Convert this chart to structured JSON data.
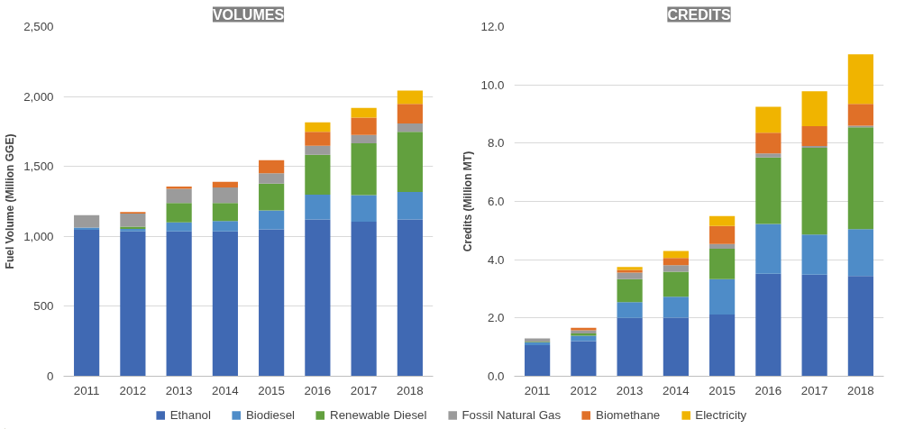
{
  "chart_data": [
    {
      "type": "bar",
      "title": "VOLUMES",
      "ylabel": "Fuel Volume (Million GGE)",
      "stacked": true,
      "legend": "bottom",
      "grid": "y",
      "categories": [
        "2011",
        "2012",
        "2013",
        "2014",
        "2015",
        "2016",
        "2017",
        "2018"
      ],
      "ylim": [
        0,
        2500
      ],
      "yticks": [
        0,
        500,
        {
          "value": 1000,
          "label": "1,000"
        },
        {
          "value": 1500,
          "label": "1,500"
        },
        {
          "value": 2000,
          "label": "2,000"
        },
        {
          "value": 2500,
          "label": "2,500"
        }
      ],
      "series": [
        {
          "name": "Ethanol",
          "color": "#4069b3",
          "values": [
            1047,
            1036,
            1036,
            1036,
            1050,
            1121,
            1105,
            1121
          ]
        },
        {
          "name": "Biodiesel",
          "color": "#4e8cc8",
          "values": [
            16,
            18,
            64,
            74,
            136,
            178,
            190,
            197
          ]
        },
        {
          "name": "Renewable Diesel",
          "color": "#62a03e",
          "values": [
            0,
            16,
            139,
            129,
            192,
            285,
            370,
            430
          ]
        },
        {
          "name": "Fossil Natural Gas",
          "color": "#9b9b9b",
          "values": [
            88,
            93,
            102,
            111,
            74,
            64,
            60,
            60
          ]
        },
        {
          "name": "Biomethane",
          "color": "#e07028",
          "values": [
            0,
            11,
            16,
            40,
            92,
            100,
            125,
            139
          ]
        },
        {
          "name": "Electricity",
          "color": "#f0b400",
          "values": [
            0,
            0,
            0,
            0,
            0,
            67,
            69,
            95
          ]
        }
      ]
    },
    {
      "type": "bar",
      "title": "CREDITS",
      "ylabel": "Credits (Million MT)",
      "stacked": true,
      "grid": "y",
      "categories": [
        "2011",
        "2012",
        "2013",
        "2014",
        "2015",
        "2016",
        "2017",
        "2018"
      ],
      "ylim": [
        0,
        12
      ],
      "yticks": [
        {
          "value": 0,
          "label": "0.0"
        },
        {
          "value": 2,
          "label": "2.0"
        },
        {
          "value": 4,
          "label": "4.0"
        },
        {
          "value": 6,
          "label": "6.0"
        },
        {
          "value": 8,
          "label": "8.0"
        },
        {
          "value": 10,
          "label": "10.0"
        },
        {
          "value": 12,
          "label": "12.0"
        }
      ],
      "series": [
        {
          "color": "#4069b3",
          "values": [
            1.07,
            1.21,
            2.0,
            2.01,
            2.12,
            3.52,
            3.49,
            3.44
          ]
        },
        {
          "color": "#4e8cc8",
          "values": [
            0.09,
            0.18,
            0.54,
            0.72,
            1.21,
            1.71,
            1.37,
            1.61
          ]
        },
        {
          "color": "#62a03e",
          "values": [
            0.02,
            0.08,
            0.79,
            0.86,
            1.05,
            2.28,
            2.98,
            3.49
          ]
        },
        {
          "color": "#9b9b9b",
          "values": [
            0.12,
            0.11,
            0.23,
            0.22,
            0.16,
            0.14,
            0.06,
            0.06
          ]
        },
        {
          "color": "#e07028",
          "values": [
            null,
            0.08,
            0.09,
            0.25,
            0.62,
            0.71,
            0.68,
            0.75
          ]
        },
        {
          "color": "#f0b400",
          "values": [
            0,
            0,
            0.1,
            0.24,
            0.34,
            0.89,
            1.2,
            1.7
          ]
        }
      ]
    }
  ]
}
